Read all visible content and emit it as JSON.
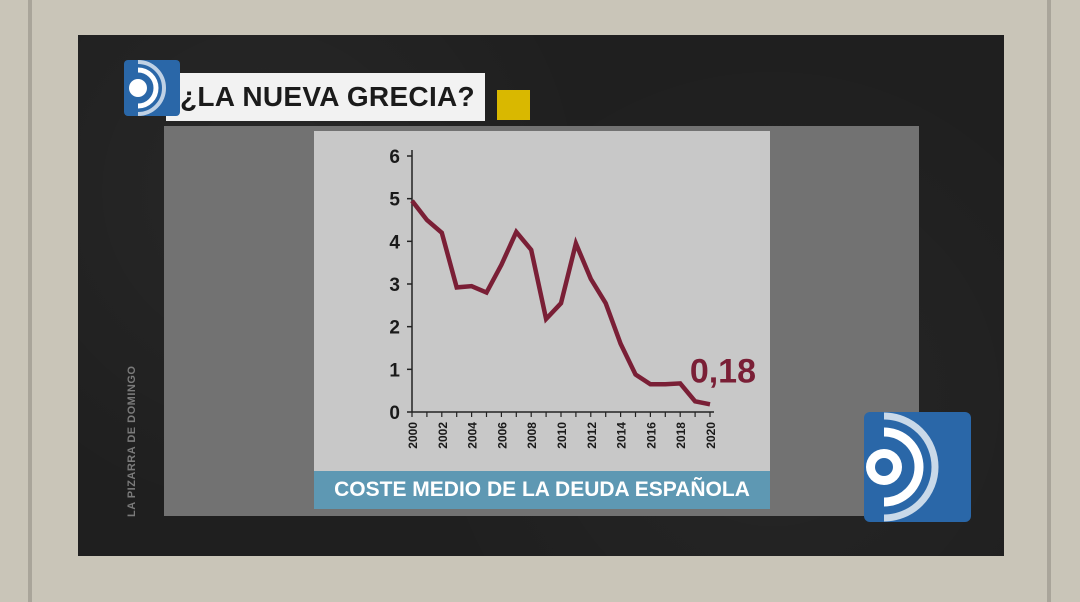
{
  "overlay": {
    "title": "¿LA NUEVA GRECIA?",
    "side_label": "LA PIZARRA DE DOMINGO"
  },
  "colors": {
    "line": "#7a1f36",
    "caption_bg": "#5e98b3",
    "accent_yellow": "#d9b800",
    "logo_blue": "#2a67a8"
  },
  "chart_data": {
    "type": "line",
    "title": "",
    "caption": "COSTE MEDIO DE LA DEUDA ESPAÑOLA",
    "xlabel": "",
    "ylabel": "",
    "xlim": [
      2000,
      2020
    ],
    "ylim": [
      0,
      6
    ],
    "yticks": [
      "0",
      "1",
      "2",
      "3",
      "4",
      "5",
      "6"
    ],
    "xticks": [
      "2000",
      "2002",
      "2004",
      "2006",
      "2008",
      "2010",
      "2012",
      "2014",
      "2016",
      "2018",
      "2020"
    ],
    "grid": false,
    "x": [
      2000,
      2001,
      2002,
      2003,
      2004,
      2005,
      2006,
      2007,
      2008,
      2009,
      2010,
      2011,
      2012,
      2013,
      2014,
      2015,
      2016,
      2017,
      2018,
      2019,
      2020
    ],
    "series": [
      {
        "values": [
          4.95,
          4.5,
          4.2,
          2.92,
          2.95,
          2.8,
          3.45,
          4.22,
          3.8,
          2.18,
          2.55,
          3.95,
          3.12,
          2.55,
          1.6,
          0.88,
          0.65,
          0.65,
          0.67,
          0.25,
          0.18
        ]
      }
    ],
    "annotation": {
      "text": "0,18",
      "x": 2020,
      "y": 0.18
    }
  }
}
